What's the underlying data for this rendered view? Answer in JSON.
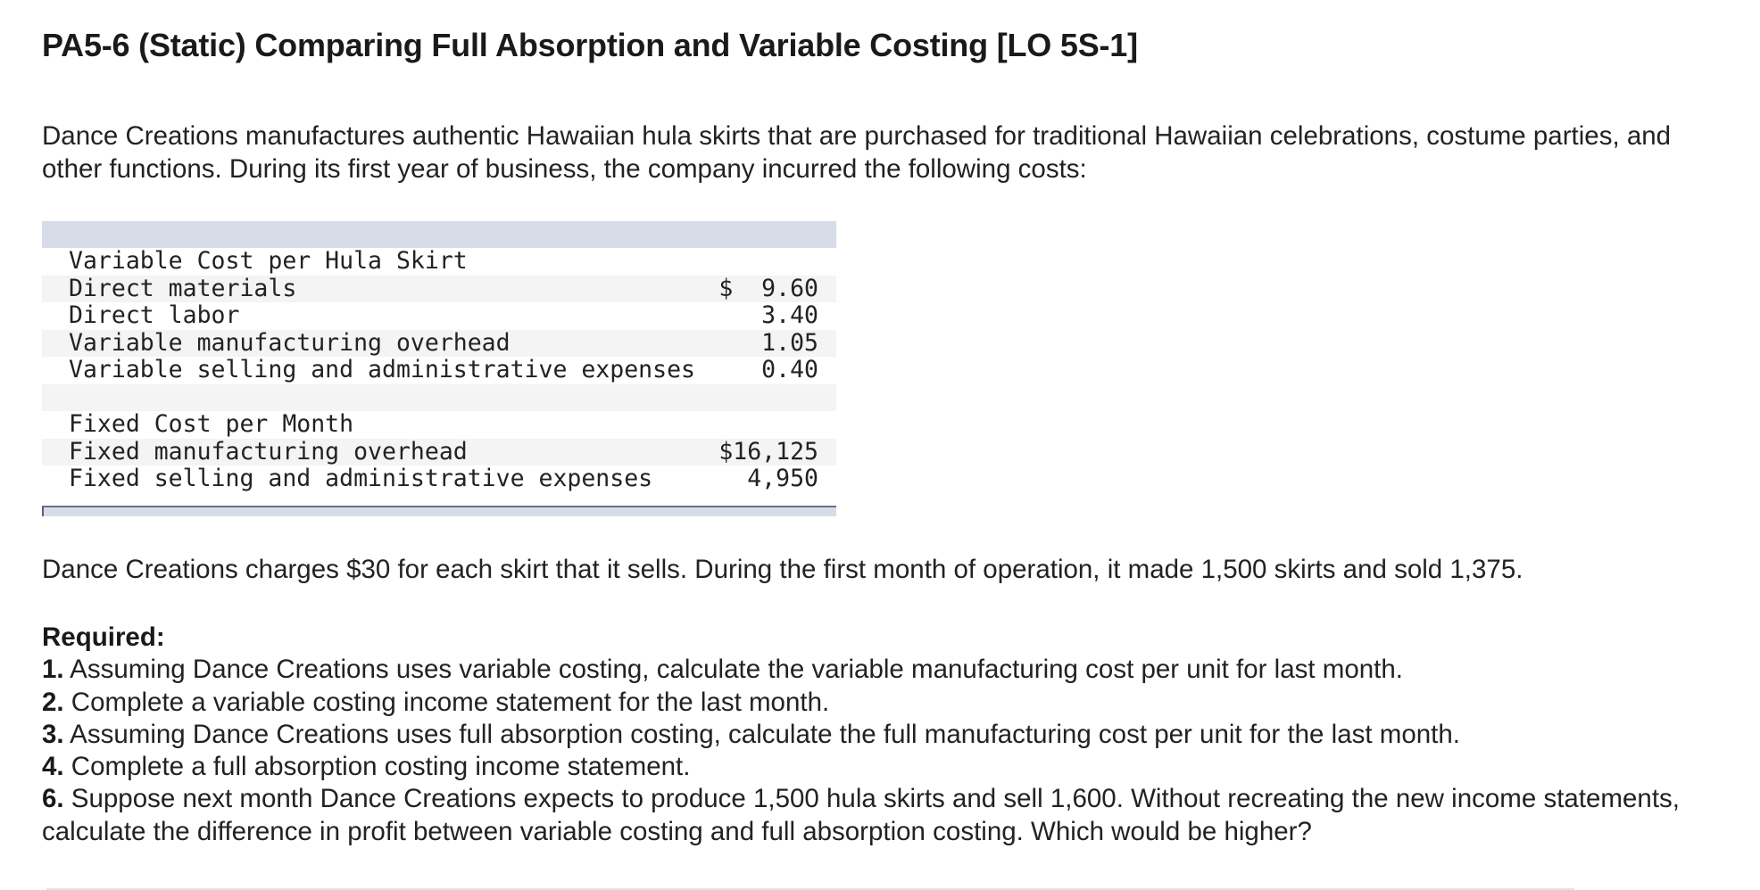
{
  "title": "PA5-6 (Static) Comparing Full Absorption and Variable Costing [LO 5S-1]",
  "intro": "Dance Creations manufactures authentic Hawaiian hula skirts that are purchased for traditional Hawaiian celebrations, costume parties, and other functions. During its first year of business, the company incurred the following costs:",
  "cost_table": {
    "rows": [
      {
        "label": "Variable Cost per Hula Skirt",
        "value": ""
      },
      {
        "label": "Direct materials",
        "value": "$  9.60"
      },
      {
        "label": "Direct labor",
        "value": "3.40"
      },
      {
        "label": "Variable manufacturing overhead",
        "value": "1.05"
      },
      {
        "label": "Variable selling and administrative expenses",
        "value": "0.40"
      },
      {
        "label": "",
        "value": ""
      },
      {
        "label": "Fixed Cost per Month",
        "value": ""
      },
      {
        "label": "Fixed manufacturing overhead",
        "value": "$16,125"
      },
      {
        "label": "Fixed selling and administrative expenses",
        "value": "4,950"
      }
    ]
  },
  "sentence": "Dance Creations charges $30 for each skirt that it sells. During the first month of operation, it made 1,500 skirts and sold 1,375.",
  "required": {
    "heading": "Required:",
    "items": [
      {
        "num": "1.",
        "text": " Assuming Dance Creations uses variable costing, calculate the variable manufacturing cost per unit for last month."
      },
      {
        "num": "2.",
        "text": " Complete a variable costing income statement for the last month."
      },
      {
        "num": "3.",
        "text": " Assuming Dance Creations uses full absorption costing, calculate the full manufacturing cost per unit for the last month."
      },
      {
        "num": "4.",
        "text": " Complete a full absorption costing income statement."
      },
      {
        "num": "6.",
        "text": " Suppose next month Dance Creations expects to produce 1,500 hula skirts and sell 1,600. Without recreating the new income statements, calculate the difference in profit between variable costing and full absorption costing. Which would be higher?"
      }
    ]
  }
}
